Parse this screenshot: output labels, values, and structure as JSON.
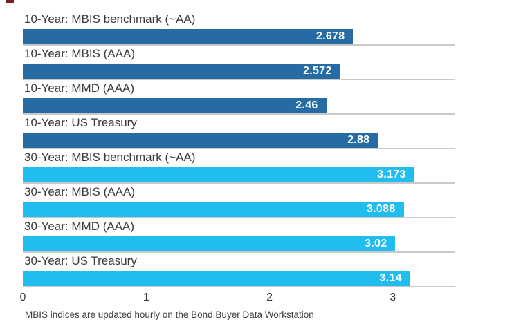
{
  "chart_data": {
    "type": "bar",
    "orientation": "horizontal",
    "categories": [
      "10-Year: MBIS benchmark (~AA)",
      "10-Year: MBIS (AAA)",
      "10-Year: MMD (AAA)",
      "10-Year: US Treasury",
      "30-Year: MBIS benchmark (~AA)",
      "30-Year: MBIS (AAA)",
      "30-Year: MMD (AAA)",
      "30-Year: US Treasury"
    ],
    "values": [
      2.678,
      2.572,
      2.46,
      2.88,
      3.173,
      3.088,
      3.02,
      3.14
    ],
    "value_labels": [
      "2.678",
      "2.572",
      "2.46",
      "2.88",
      "3.173",
      "3.088",
      "3.02",
      "3.14"
    ],
    "bar_colors": [
      "#266ba3",
      "#266ba3",
      "#266ba3",
      "#266ba3",
      "#20bdee",
      "#20bdee",
      "#20bdee",
      "#20bdee"
    ],
    "groups": [
      {
        "name": "10-Year",
        "color": "#266ba3"
      },
      {
        "name": "30-Year",
        "color": "#20bdee"
      }
    ],
    "xlim": [
      0,
      3.5
    ],
    "x_ticks": [
      {
        "label": "0",
        "value": 0
      },
      {
        "label": "1",
        "value": 1
      },
      {
        "label": "2",
        "value": 2
      },
      {
        "label": "3",
        "value": 3
      }
    ],
    "grid": false,
    "baseline_color": "#c9c9c9",
    "value_label_color": "#ffffff",
    "category_label_color": "#3a3a3a",
    "footnote": "MBIS indices are updated hourly on the Bond Buyer Data Workstation"
  }
}
